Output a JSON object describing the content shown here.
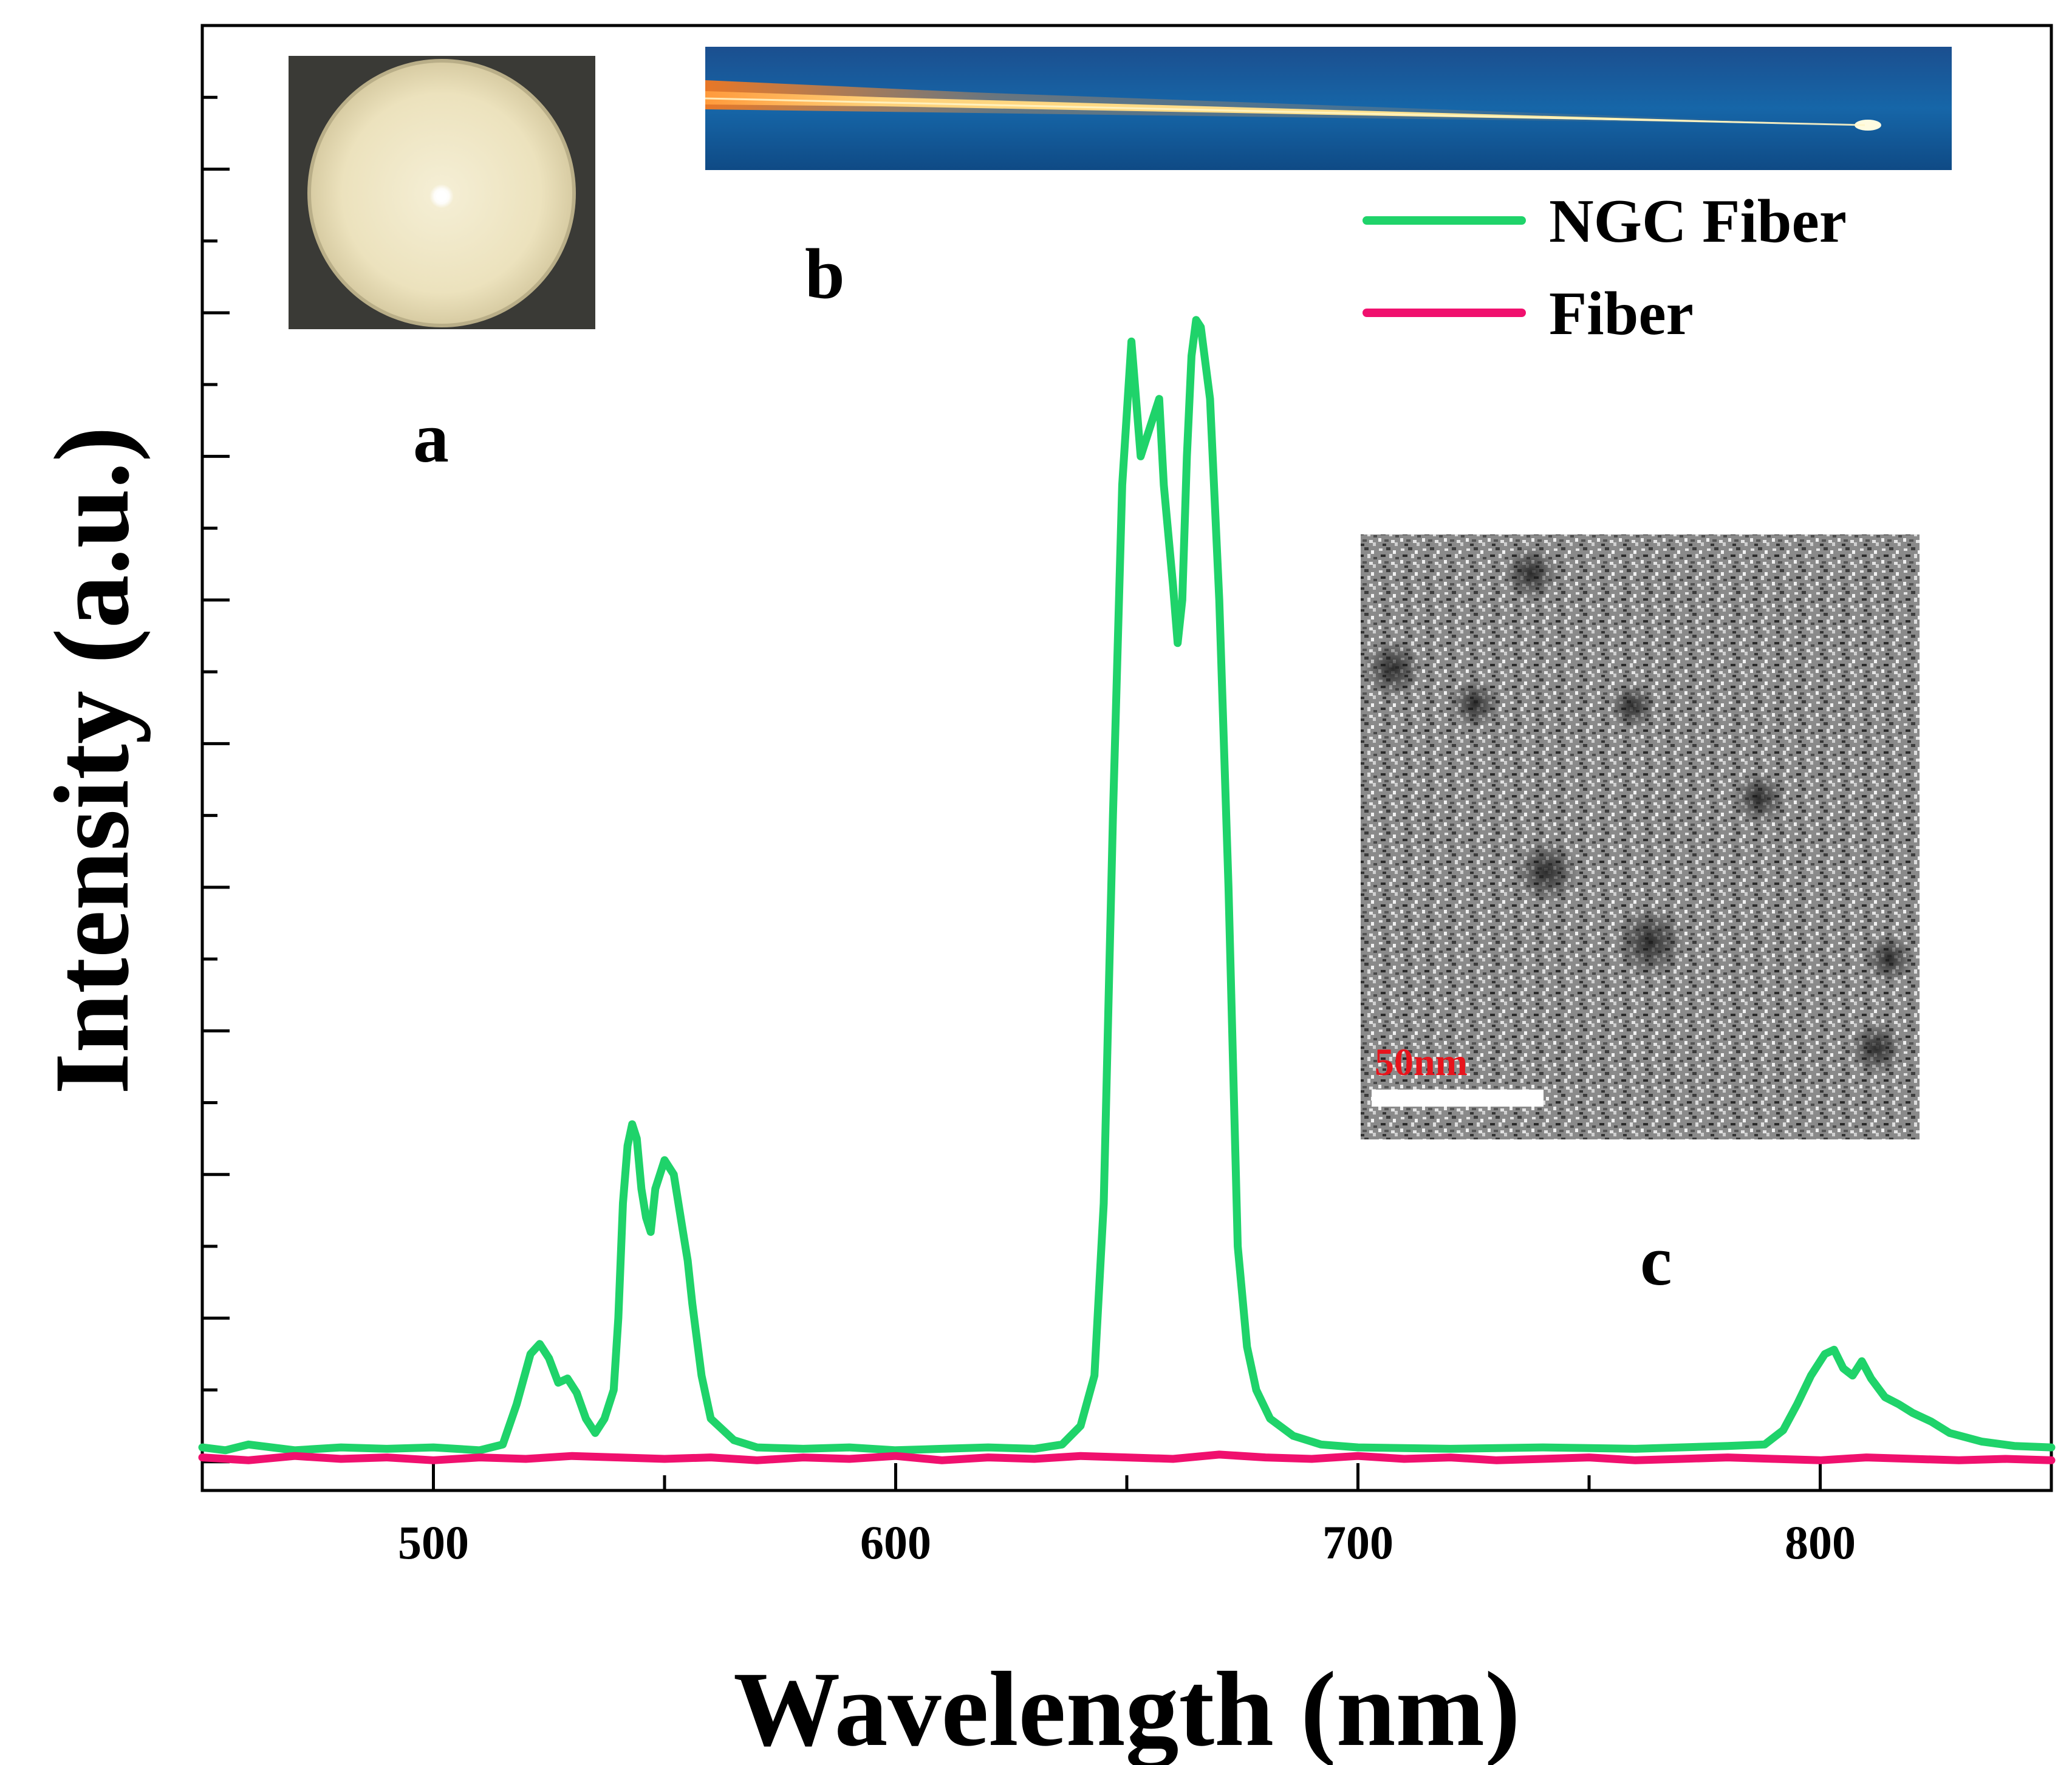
{
  "colors": {
    "ngc": "#1fd36a",
    "fiber": "#f0106e",
    "scale_text": "#e8141c"
  },
  "panels": {
    "a": "a",
    "b": "b",
    "c": "c"
  },
  "inset": {
    "a_description": "end-face photo",
    "b_description": "fiber photo",
    "c_description": "TEM image",
    "scale_bar": "50nm"
  },
  "chart_data": {
    "type": "line",
    "xlabel": "Wavelength (nm)",
    "ylabel": "Intensity (a.u.)",
    "xlim": [
      450,
      850
    ],
    "ylim": [
      -0.02,
      1.0
    ],
    "x_ticks": [
      500,
      600,
      700,
      800
    ],
    "x_tick_labels": [
      "500",
      "600",
      "700",
      "800"
    ],
    "y_tick_labels_shown": false,
    "legend": {
      "placement": "top-right",
      "entries": [
        "NGC Fiber",
        "Fiber"
      ]
    },
    "series": [
      {
        "name": "NGC Fiber",
        "color": "#1fd36a",
        "points": [
          [
            450,
            0.01
          ],
          [
            455,
            0.008
          ],
          [
            460,
            0.012
          ],
          [
            470,
            0.008
          ],
          [
            480,
            0.01
          ],
          [
            490,
            0.009
          ],
          [
            500,
            0.01
          ],
          [
            510,
            0.008
          ],
          [
            515,
            0.012
          ],
          [
            518,
            0.04
          ],
          [
            521,
            0.075
          ],
          [
            523,
            0.082
          ],
          [
            525,
            0.072
          ],
          [
            527,
            0.055
          ],
          [
            529,
            0.058
          ],
          [
            531,
            0.048
          ],
          [
            533,
            0.03
          ],
          [
            535,
            0.02
          ],
          [
            537,
            0.03
          ],
          [
            539,
            0.05
          ],
          [
            540,
            0.1
          ],
          [
            541,
            0.18
          ],
          [
            542,
            0.22
          ],
          [
            543,
            0.235
          ],
          [
            544,
            0.225
          ],
          [
            545,
            0.19
          ],
          [
            546,
            0.17
          ],
          [
            547,
            0.16
          ],
          [
            548,
            0.19
          ],
          [
            550,
            0.21
          ],
          [
            552,
            0.2
          ],
          [
            554,
            0.16
          ],
          [
            555,
            0.14
          ],
          [
            556,
            0.11
          ],
          [
            558,
            0.06
          ],
          [
            560,
            0.03
          ],
          [
            565,
            0.015
          ],
          [
            570,
            0.01
          ],
          [
            580,
            0.009
          ],
          [
            590,
            0.01
          ],
          [
            600,
            0.008
          ],
          [
            610,
            0.009
          ],
          [
            620,
            0.01
          ],
          [
            630,
            0.009
          ],
          [
            636,
            0.012
          ],
          [
            640,
            0.025
          ],
          [
            643,
            0.06
          ],
          [
            645,
            0.18
          ],
          [
            647,
            0.45
          ],
          [
            649,
            0.68
          ],
          [
            651,
            0.78
          ],
          [
            653,
            0.7
          ],
          [
            655,
            0.72
          ],
          [
            657,
            0.74
          ],
          [
            658,
            0.68
          ],
          [
            660,
            0.61
          ],
          [
            661,
            0.57
          ],
          [
            662,
            0.6
          ],
          [
            663,
            0.7
          ],
          [
            664,
            0.77
          ],
          [
            665,
            0.795
          ],
          [
            666,
            0.79
          ],
          [
            668,
            0.74
          ],
          [
            670,
            0.6
          ],
          [
            672,
            0.4
          ],
          [
            674,
            0.15
          ],
          [
            676,
            0.08
          ],
          [
            678,
            0.05
          ],
          [
            681,
            0.03
          ],
          [
            686,
            0.018
          ],
          [
            692,
            0.012
          ],
          [
            700,
            0.01
          ],
          [
            720,
            0.009
          ],
          [
            740,
            0.01
          ],
          [
            760,
            0.009
          ],
          [
            780,
            0.011
          ],
          [
            788,
            0.012
          ],
          [
            792,
            0.022
          ],
          [
            795,
            0.04
          ],
          [
            798,
            0.06
          ],
          [
            801,
            0.075
          ],
          [
            803,
            0.078
          ],
          [
            805,
            0.065
          ],
          [
            807,
            0.06
          ],
          [
            809,
            0.07
          ],
          [
            811,
            0.058
          ],
          [
            814,
            0.045
          ],
          [
            817,
            0.04
          ],
          [
            820,
            0.034
          ],
          [
            824,
            0.028
          ],
          [
            828,
            0.02
          ],
          [
            835,
            0.014
          ],
          [
            842,
            0.011
          ],
          [
            850,
            0.01
          ]
        ]
      },
      {
        "name": "Fiber",
        "color": "#f0106e",
        "points": [
          [
            450,
            0.003
          ],
          [
            460,
            0.001
          ],
          [
            470,
            0.004
          ],
          [
            480,
            0.002
          ],
          [
            490,
            0.003
          ],
          [
            500,
            0.001
          ],
          [
            510,
            0.003
          ],
          [
            520,
            0.002
          ],
          [
            530,
            0.004
          ],
          [
            540,
            0.003
          ],
          [
            550,
            0.002
          ],
          [
            560,
            0.003
          ],
          [
            570,
            0.001
          ],
          [
            580,
            0.003
          ],
          [
            590,
            0.002
          ],
          [
            600,
            0.004
          ],
          [
            610,
            0.001
          ],
          [
            620,
            0.003
          ],
          [
            630,
            0.002
          ],
          [
            640,
            0.004
          ],
          [
            650,
            0.003
          ],
          [
            660,
            0.002
          ],
          [
            670,
            0.005
          ],
          [
            680,
            0.003
          ],
          [
            690,
            0.002
          ],
          [
            700,
            0.004
          ],
          [
            710,
            0.002
          ],
          [
            720,
            0.003
          ],
          [
            730,
            0.001
          ],
          [
            740,
            0.002
          ],
          [
            750,
            0.003
          ],
          [
            760,
            0.001
          ],
          [
            770,
            0.002
          ],
          [
            780,
            0.003
          ],
          [
            790,
            0.002
          ],
          [
            800,
            0.001
          ],
          [
            810,
            0.003
          ],
          [
            820,
            0.002
          ],
          [
            830,
            0.001
          ],
          [
            840,
            0.002
          ],
          [
            850,
            0.001
          ]
        ]
      }
    ]
  }
}
